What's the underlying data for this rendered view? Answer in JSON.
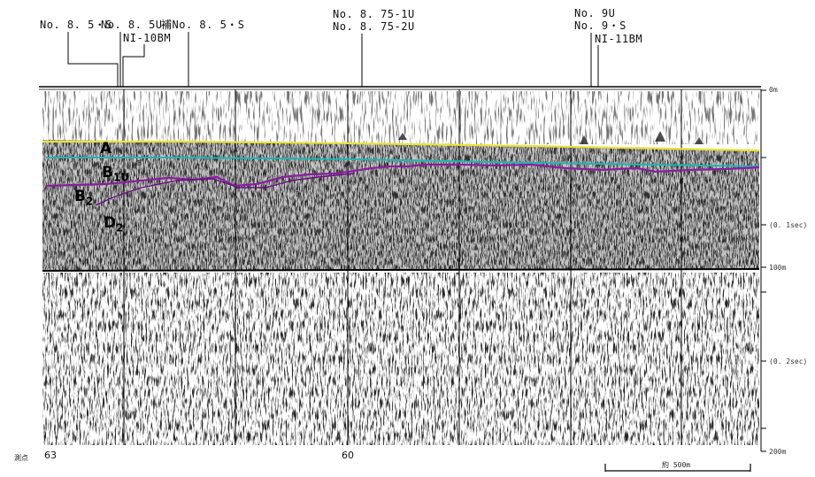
{
  "stations": {
    "s1": "No. 8. 5・S",
    "s2": "No. 8. 5U",
    "s3": "NI-10BM",
    "s4": "補No. 8. 5・S",
    "s5a": "No. 8. 75-1U",
    "s5b": "No. 8. 75-2U",
    "s6a": "No. 9U",
    "s6b": "No. 9・S",
    "s7": "NI-11BM"
  },
  "horizons": {
    "A": "A",
    "B1U_main": "B",
    "B1U_sub": "1U",
    "B2_main": "B",
    "B2_sub": "2",
    "D2_main": "D",
    "D2_sub": "2",
    "inline_B": "B",
    "inline_A": "A",
    "inline_D": "D"
  },
  "depth_labels": {
    "d0": "0m",
    "d1": "(0. 1sec)",
    "d2": "100m",
    "d3": "(0. 2sec)",
    "d4": "200m"
  },
  "shot_points": {
    "label": "測点",
    "p1": "63",
    "p2": "60"
  },
  "scale_bar": {
    "label": "約 500m"
  },
  "colors": {
    "horizon_A": "#e8e23a",
    "horizon_B1U": "#1fb5b5",
    "horizon_B2": "#8a1fa0"
  }
}
